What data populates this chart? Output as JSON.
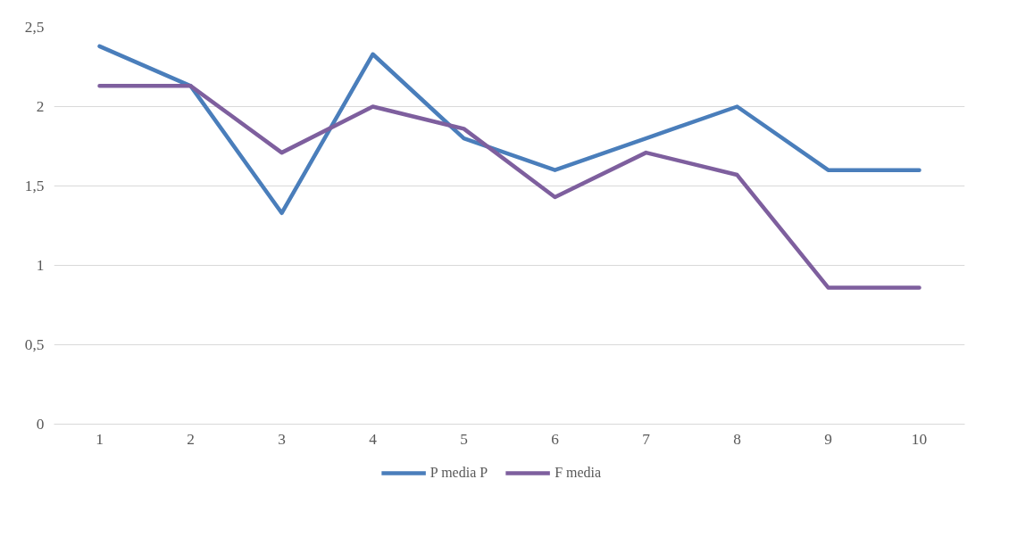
{
  "chart_data": {
    "type": "line",
    "categories": [
      "1",
      "2",
      "3",
      "4",
      "5",
      "6",
      "7",
      "8",
      "9",
      "10"
    ],
    "series": [
      {
        "name": "P media P",
        "color": "#4a7ebb",
        "values": [
          2.38,
          2.13,
          1.33,
          2.33,
          1.8,
          1.6,
          1.8,
          2,
          1.6,
          1.6
        ]
      },
      {
        "name": "F media",
        "color": "#7e5f9e",
        "values": [
          2.13,
          2.13,
          1.71,
          2,
          1.86,
          1.43,
          1.71,
          1.57,
          0.86,
          0.86
        ]
      }
    ],
    "ylim": [
      0,
      2.5
    ],
    "yticks": [
      0,
      {
        "value": 0.5,
        "label": "0,5"
      },
      1,
      {
        "value": 1.5,
        "label": "1,5"
      },
      2,
      {
        "value": 2.5,
        "label": "2,5"
      }
    ],
    "grid": "y",
    "legend": "bottom",
    "marker": "none",
    "line_style": "solid"
  }
}
